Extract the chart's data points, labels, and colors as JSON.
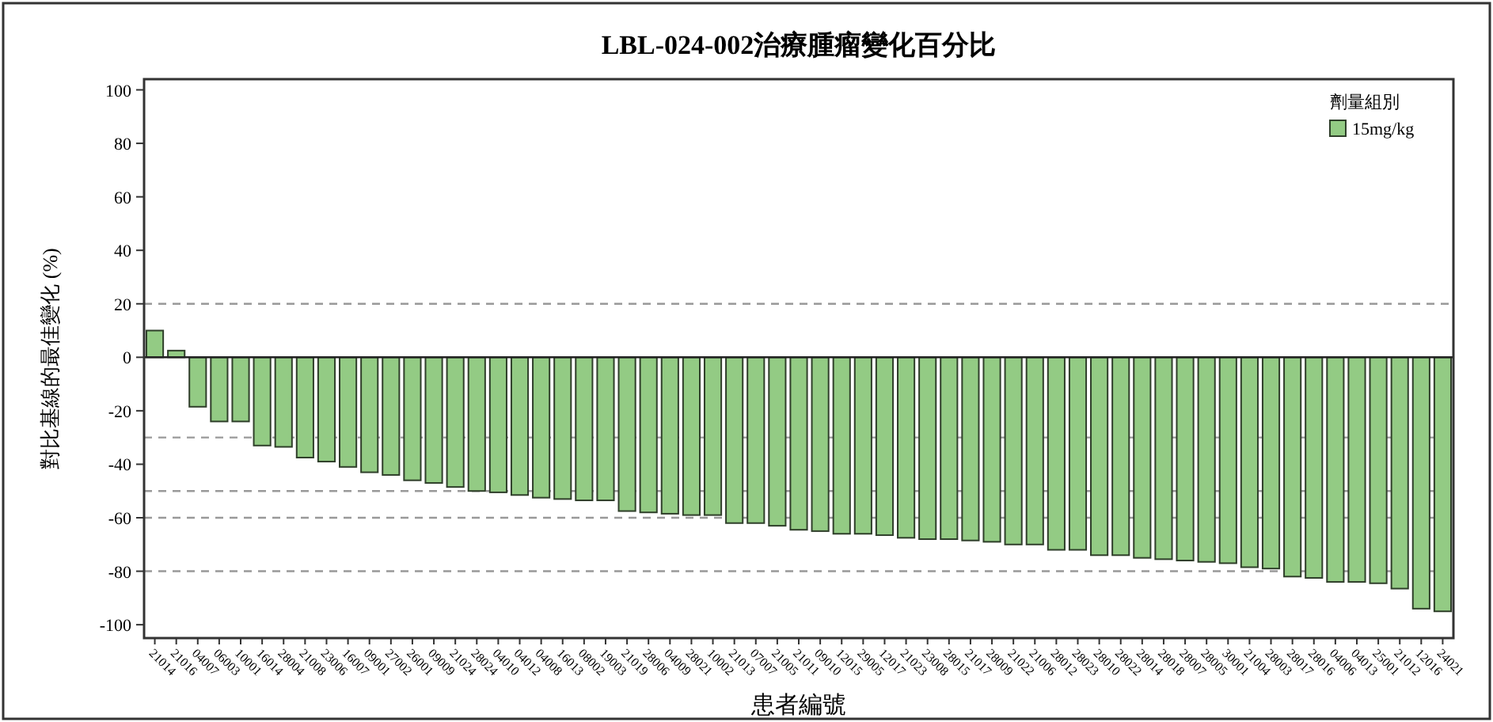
{
  "chart_data": {
    "type": "bar",
    "title": "LBL-024-002治療腫瘤變化百分比",
    "xlabel": "患者編號",
    "ylabel": "對比基線的最佳變化 (%)",
    "legend_title": "劑量組別",
    "legend": "top right",
    "categories": [
      "21014",
      "21016",
      "04007",
      "06003",
      "10001",
      "16014",
      "28004",
      "21008",
      "23006",
      "16007",
      "09001",
      "27002",
      "26001",
      "09009",
      "21024",
      "28024",
      "04010",
      "04012",
      "04008",
      "16013",
      "08002",
      "19003",
      "21019",
      "28006",
      "04009",
      "28021",
      "10002",
      "21013",
      "07007",
      "21005",
      "21011",
      "09010",
      "12015",
      "29005",
      "12017",
      "21023",
      "23008",
      "28015",
      "21017",
      "28009",
      "21022",
      "21006",
      "28012",
      "28023",
      "28010",
      "28022",
      "28014",
      "28018",
      "28007",
      "28005",
      "30001",
      "21004",
      "28003",
      "28017",
      "28016",
      "04006",
      "04013",
      "25001",
      "21012",
      "12016",
      "24021"
    ],
    "series": [
      {
        "name": "15mg/kg",
        "color": "#93cb84",
        "values": [
          10,
          2.5,
          -18.5,
          -24,
          -24,
          -33,
          -33.5,
          -37.5,
          -39,
          -41,
          -43,
          -44,
          -46,
          -47,
          -48.5,
          -50,
          -50.5,
          -51.5,
          -52.5,
          -53,
          -53.5,
          -53.5,
          -57.5,
          -58,
          -58.5,
          -59,
          -59,
          -62,
          -62,
          -63,
          -64.5,
          -65,
          -66,
          -66,
          -66.5,
          -67.5,
          -68,
          -68,
          -68.5,
          -69,
          -70,
          -70,
          -72,
          -72,
          -74,
          -74,
          -75,
          -75.5,
          -76,
          -76.5,
          -77,
          -78.5,
          -79,
          -82,
          -82.5,
          -84,
          -84,
          -84.5,
          -86.5,
          -94,
          -95
        ]
      }
    ],
    "ylim": [
      -105,
      104
    ],
    "yticks": [
      100,
      80,
      60,
      40,
      20,
      0,
      -20,
      -40,
      -60,
      -80,
      -100
    ],
    "grid": false,
    "ref_lines": [
      {
        "axis": "y",
        "value": 20,
        "color": "#999999",
        "line_style": "dashed"
      },
      {
        "axis": "y",
        "value": -30,
        "color": "#999999",
        "line_style": "dashed"
      },
      {
        "axis": "y",
        "value": -50,
        "color": "#999999",
        "line_style": "dashed"
      },
      {
        "axis": "y",
        "value": -60,
        "color": "#999999",
        "line_style": "dashed"
      },
      {
        "axis": "y",
        "value": -80,
        "color": "#999999",
        "line_style": "dashed"
      }
    ]
  }
}
